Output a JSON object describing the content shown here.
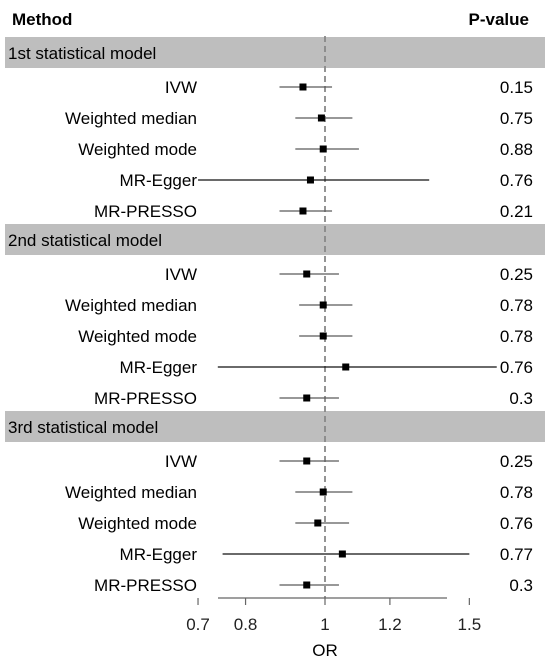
{
  "chart_data": {
    "type": "forest",
    "headers": {
      "method": "Method",
      "pvalue": "P-value"
    },
    "xlabel": "OR",
    "xscale": "log",
    "xlim": [
      0.65,
      1.6
    ],
    "xticks": [
      "0.7",
      "0.8",
      "1",
      "1.2",
      "1.5"
    ],
    "reference_line": 1.0,
    "groups": [
      {
        "title": "1st statistical model",
        "rows": [
          {
            "method": "IVW",
            "or": 0.94,
            "lo": 0.88,
            "hi": 1.02,
            "p": "0.15"
          },
          {
            "method": "Weighted median",
            "or": 0.99,
            "lo": 0.92,
            "hi": 1.08,
            "p": "0.75"
          },
          {
            "method": "Weighted mode",
            "or": 0.995,
            "lo": 0.92,
            "hi": 1.1,
            "p": "0.88"
          },
          {
            "method": "MR-Egger",
            "or": 0.96,
            "lo": 0.7,
            "hi": 1.34,
            "p": "0.76"
          },
          {
            "method": "MR-PRESSO",
            "or": 0.94,
            "lo": 0.88,
            "hi": 1.02,
            "p": "0.21"
          }
        ]
      },
      {
        "title": "2nd statistical model",
        "rows": [
          {
            "method": "IVW",
            "or": 0.95,
            "lo": 0.88,
            "hi": 1.04,
            "p": "0.25"
          },
          {
            "method": "Weighted median",
            "or": 0.995,
            "lo": 0.93,
            "hi": 1.08,
            "p": "0.78"
          },
          {
            "method": "Weighted mode",
            "or": 0.995,
            "lo": 0.93,
            "hi": 1.08,
            "p": "0.78"
          },
          {
            "method": "MR-Egger",
            "or": 1.06,
            "lo": 0.74,
            "hi": 1.62,
            "p": "0.76"
          },
          {
            "method": "MR-PRESSO",
            "or": 0.95,
            "lo": 0.88,
            "hi": 1.04,
            "p": "0.3"
          }
        ]
      },
      {
        "title": "3rd statistical model",
        "rows": [
          {
            "method": "IVW",
            "or": 0.95,
            "lo": 0.88,
            "hi": 1.04,
            "p": "0.25"
          },
          {
            "method": "Weighted median",
            "or": 0.995,
            "lo": 0.92,
            "hi": 1.08,
            "p": "0.78"
          },
          {
            "method": "Weighted mode",
            "or": 0.98,
            "lo": 0.92,
            "hi": 1.07,
            "p": "0.76"
          },
          {
            "method": "MR-Egger",
            "or": 1.05,
            "lo": 0.75,
            "hi": 1.5,
            "p": "0.77"
          },
          {
            "method": "MR-PRESSO",
            "or": 0.95,
            "lo": 0.88,
            "hi": 1.04,
            "p": "0.3"
          }
        ]
      }
    ]
  }
}
